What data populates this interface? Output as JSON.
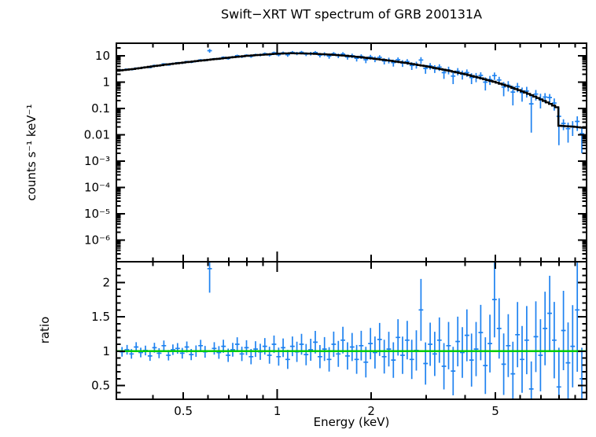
{
  "chart_data": {
    "type": "scatter",
    "title": "Swift−XRT WT spectrum of GRB 200131A",
    "xlabel": "Energy (keV)",
    "xscale": "log",
    "xlim": [
      0.305,
      9.8
    ],
    "xticks": {
      "major_values": [
        0.5,
        1,
        2,
        5
      ],
      "major_labels": [
        "0.5",
        "1",
        "2",
        "5"
      ],
      "minor_values": [
        0.4,
        0.6,
        0.7,
        0.8,
        0.9,
        3,
        4,
        6,
        7,
        8,
        9
      ]
    },
    "colors": {
      "data": "#1e82f0",
      "model": "#000000",
      "unity": "#00cc00"
    },
    "x": [
      0.318,
      0.33,
      0.341,
      0.353,
      0.365,
      0.378,
      0.391,
      0.404,
      0.418,
      0.433,
      0.448,
      0.463,
      0.479,
      0.496,
      0.513,
      0.53,
      0.549,
      0.568,
      0.587,
      0.607,
      0.628,
      0.65,
      0.672,
      0.696,
      0.72,
      0.744,
      0.77,
      0.797,
      0.824,
      0.852,
      0.882,
      0.912,
      0.944,
      0.976,
      1.01,
      1.044,
      1.08,
      1.118,
      1.156,
      1.196,
      1.237,
      1.28,
      1.324,
      1.37,
      1.417,
      1.466,
      1.516,
      1.569,
      1.623,
      1.679,
      1.737,
      1.796,
      1.858,
      1.922,
      1.989,
      2.057,
      2.128,
      2.202,
      2.278,
      2.356,
      2.437,
      2.521,
      2.608,
      2.698,
      2.791,
      2.888,
      2.987,
      3.09,
      3.197,
      3.307,
      3.421,
      3.539,
      3.661,
      3.788,
      3.918,
      4.053,
      4.193,
      4.338,
      4.488,
      4.643,
      4.803,
      4.968,
      5.14,
      5.317,
      5.5,
      5.69,
      5.887,
      6.09,
      6.3,
      6.517,
      6.742,
      6.975,
      7.215,
      7.464,
      7.722,
      7.988,
      8.264,
      8.549,
      8.844,
      9.149,
      9.465
    ],
    "panels": [
      {
        "name": "spectrum",
        "ylabel": "counts s⁻¹ keV⁻¹",
        "yscale": "log",
        "ylim": [
          1.5e-07,
          30
        ],
        "yticks": {
          "values": [
            10,
            1,
            0.1,
            0.01,
            0.001,
            0.0001,
            1e-05,
            1e-06
          ],
          "labels": [
            "10",
            "1",
            "0.1",
            "0.01",
            "10⁻³",
            "10⁻⁴",
            "10⁻⁵",
            "10⁻⁶"
          ]
        },
        "series": [
          {
            "name": "data",
            "type": "errorbar",
            "y": [
              2.9,
              3.1,
              3.0,
              3.4,
              3.4,
              3.7,
              3.6,
              4.3,
              4.2,
              4.9,
              4.5,
              5.1,
              5.4,
              5.3,
              6.0,
              5.7,
              6.2,
              7.0,
              6.7,
              15.6,
              7.7,
              7.6,
              8.7,
              7.9,
              9.0,
              10.1,
              9.2,
              10.4,
              9.5,
              10.9,
              10.8,
              12.0,
              10.8,
              13.0,
              11.0,
              12.8,
              10.9,
              13.4,
              12.3,
              13.5,
              11.6,
              12.2,
              13.3,
              10.6,
              11.6,
              9.7,
              11.9,
              10.1,
              11.7,
              9.1,
              10.1,
              8.0,
              9.5,
              7.1,
              9.0,
              7.5,
              8.7,
              6.4,
              6.8,
              5.5,
              7.1,
              5.3,
              6.0,
              4.3,
              4.6,
              6.9,
              3.3,
              4.1,
              3.3,
              3.7,
              2.3,
              2.9,
              1.7,
              2.6,
              2.0,
              2.3,
              1.5,
              1.6,
              1.8,
              1.0,
              1.25,
              1.77,
              1.2,
              0.65,
              0.76,
              0.42,
              0.67,
              0.4,
              0.46,
              0.15,
              0.35,
              0.23,
              0.27,
              0.26,
              0.16,
              0.05,
              0.027,
              0.017,
              0.021,
              0.032,
              0.011
            ],
            "yerr": [
              0.2,
              0.21,
              0.22,
              0.23,
              0.24,
              0.26,
              0.27,
              0.29,
              0.31,
              0.33,
              0.36,
              0.38,
              0.4,
              0.43,
              0.45,
              0.48,
              0.51,
              0.55,
              0.59,
              2.5,
              0.67,
              0.72,
              0.77,
              0.81,
              0.88,
              0.94,
              1.0,
              1.07,
              1.14,
              1.2,
              1.28,
              1.34,
              1.43,
              1.5,
              1.57,
              1.65,
              1.72,
              1.79,
              1.82,
              1.86,
              1.89,
              1.92,
              1.94,
              1.94,
              1.97,
              1.96,
              1.99,
              1.98,
              1.96,
              1.95,
              1.95,
              1.91,
              1.9,
              1.86,
              1.85,
              1.79,
              1.78,
              1.72,
              1.66,
              1.63,
              1.56,
              1.52,
              1.45,
              1.4,
              1.35,
              1.9,
              1.23,
              1.16,
              1.09,
              1.04,
              0.98,
              0.93,
              0.86,
              0.81,
              0.76,
              0.72,
              0.66,
              0.61,
              0.56,
              0.52,
              0.47,
              0.56,
              0.39,
              0.36,
              0.32,
              0.29,
              0.26,
              0.22,
              0.2,
              0.17,
              0.15,
              0.13,
              0.11,
              0.093,
              0.078,
              0.06,
              0.012,
              0.012,
              0.012,
              0.018,
              0.009
            ]
          },
          {
            "name": "model",
            "type": "step",
            "x": [
              0.3,
              0.35,
              0.4,
              0.45,
              0.5,
              0.55,
              0.6,
              0.7,
              0.8,
              0.9,
              1.0,
              1.1,
              1.2,
              1.3,
              1.5,
              1.7,
              2.0,
              2.3,
              2.6,
              3.0,
              3.5,
              4.0,
              4.5,
              5.0,
              5.5,
              6.0,
              6.5,
              7.0,
              7.5,
              8.0,
              8.05,
              8.5,
              9.0,
              9.8
            ],
            "y": [
              2.6,
              3.2,
              4.0,
              4.8,
              5.5,
              6.3,
              7.0,
              8.5,
              10.0,
              11.0,
              12.0,
              12.5,
              12.3,
              12.0,
              11.0,
              9.8,
              8.0,
              6.5,
              5.3,
              4.0,
              2.8,
              2.0,
              1.4,
              1.0,
              0.7,
              0.48,
              0.33,
              0.22,
              0.15,
              0.1,
              0.022,
              0.021,
              0.02,
              0.018
            ]
          }
        ]
      },
      {
        "name": "ratio",
        "ylabel": "ratio",
        "yscale": "linear",
        "ylim": [
          0.3,
          2.3
        ],
        "yticks": {
          "values": [
            0.5,
            1,
            1.5,
            2
          ],
          "labels": [
            "0.5",
            "1",
            "1.5",
            "2"
          ],
          "minor_step": 0.1
        },
        "series": [
          {
            "name": "ratio-data",
            "type": "errorbar",
            "y": [
              0.99,
              1.02,
              0.96,
              1.06,
              0.98,
              1.01,
              0.93,
              1.05,
              0.97,
              1.08,
              0.94,
              1.02,
              1.04,
              0.97,
              1.06,
              0.95,
              1.0,
              1.08,
              0.99,
              2.2,
              1.04,
              0.98,
              1.07,
              0.94,
              1.02,
              1.1,
              0.96,
              1.05,
              0.92,
              1.03,
              0.99,
              1.07,
              0.94,
              1.1,
              0.92,
              1.05,
              0.88,
              1.07,
              0.99,
              1.1,
              0.95,
              1.02,
              1.13,
              0.92,
              1.03,
              0.88,
              1.1,
              0.96,
              1.16,
              0.93,
              1.06,
              0.88,
              1.08,
              0.84,
              1.11,
              0.98,
              1.17,
              0.92,
              1.03,
              0.87,
              1.2,
              0.94,
              1.16,
              0.88,
              1.01,
              1.6,
              0.82,
              1.1,
              0.96,
              1.16,
              0.78,
              1.08,
              0.71,
              1.14,
              0.98,
              1.23,
              0.87,
              1.03,
              1.27,
              0.79,
              1.11,
              1.75,
              1.33,
              0.81,
              1.08,
              0.67,
              1.24,
              0.88,
              1.16,
              0.45,
              1.21,
              0.94,
              1.33,
              1.55,
              1.16,
              0.48,
              1.3,
              0.83,
              1.07,
              1.6,
              0.6
            ],
            "yerr": [
              0.07,
              0.07,
              0.07,
              0.07,
              0.07,
              0.071,
              0.071,
              0.072,
              0.073,
              0.074,
              0.075,
              0.076,
              0.077,
              0.078,
              0.08,
              0.081,
              0.083,
              0.084,
              0.086,
              0.35,
              0.09,
              0.092,
              0.095,
              0.097,
              0.1,
              0.102,
              0.105,
              0.108,
              0.111,
              0.114,
              0.117,
              0.12,
              0.124,
              0.127,
              0.131,
              0.135,
              0.139,
              0.143,
              0.147,
              0.151,
              0.155,
              0.16,
              0.164,
              0.169,
              0.174,
              0.178,
              0.184,
              0.189,
              0.194,
              0.199,
              0.205,
              0.21,
              0.216,
              0.222,
              0.228,
              0.233,
              0.24,
              0.246,
              0.252,
              0.259,
              0.265,
              0.272,
              0.279,
              0.286,
              0.293,
              0.45,
              0.307,
              0.314,
              0.322,
              0.33,
              0.337,
              0.345,
              0.353,
              0.361,
              0.369,
              0.377,
              0.386,
              0.394,
              0.403,
              0.412,
              0.42,
              0.55,
              0.438,
              0.447,
              0.457,
              0.466,
              0.475,
              0.485,
              0.495,
              0.4,
              0.514,
              0.524,
              0.535,
              0.545,
              0.556,
              0.57,
              0.577,
              0.588,
              0.598,
              0.9,
              0.45
            ]
          },
          {
            "name": "unity-line",
            "type": "hline",
            "y": 1
          }
        ]
      }
    ]
  }
}
